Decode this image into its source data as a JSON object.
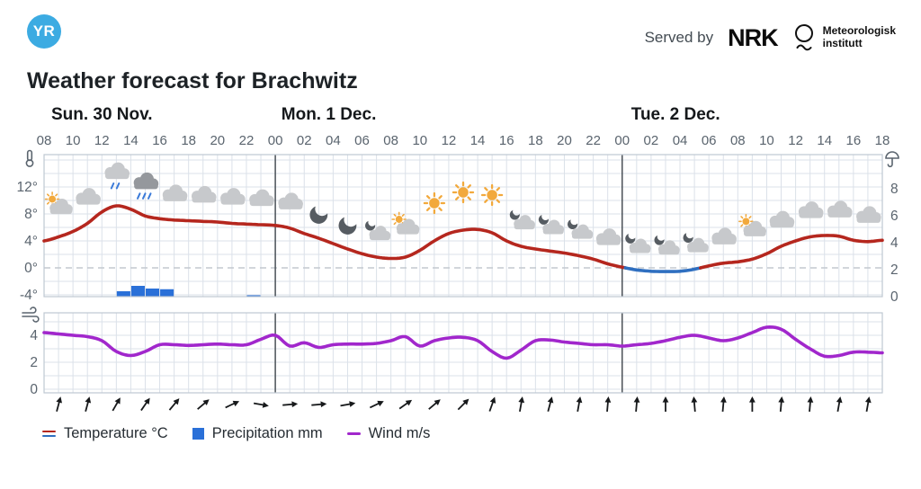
{
  "header": {
    "yr_logo_text": "YR",
    "served_by_label": "Served by",
    "nrk_logo_text": "NRK",
    "met_logo_line1": "Meteorologisk",
    "met_logo_line2": "institutt"
  },
  "page_title": "Weather forecast for Brachwitz",
  "legend": {
    "temperature": "Temperature °C",
    "precipitation": "Precipitation mm",
    "wind": "Wind m/s"
  },
  "colors": {
    "temperature_line": "#b5271e",
    "temperature_below_zero": "#2f6fc0",
    "precipitation_bar": "#2a70d8",
    "wind_line": "#a127cc",
    "grid": "#dbe1e9",
    "frame": "#bfc7d1",
    "divider": "#4b5157",
    "zero_line": "#c3c9cf",
    "axis_text": "#5a646e",
    "day_text": "#15181b",
    "arrow": "#17191b",
    "icon_cloud": "#c7c9cc",
    "icon_cloud_dark": "#95989d",
    "icon_sun": "#f2a93c",
    "icon_moon": "#565c62",
    "icon_rain": "#3a7ad9",
    "yr_blue": "#3cabe2"
  },
  "chart_data": {
    "type": "line",
    "title": "Weather forecast for Brachwitz",
    "x_unit": "hours, every point = 1 hour",
    "x_start": "Sun 08:00",
    "x_end": "Tue 18:00",
    "day_labels": [
      {
        "label": "Sun. 30 Nov.",
        "center_hour": 4
      },
      {
        "label": "Mon. 1 Dec.",
        "center_hour": 19.7
      },
      {
        "label": "Tue. 2 Dec.",
        "center_hour": 43.7
      }
    ],
    "hour_tick_labels": [
      "08",
      "10",
      "12",
      "14",
      "16",
      "18",
      "20",
      "22",
      "00",
      "02",
      "04",
      "06",
      "08",
      "10",
      "12",
      "14",
      "16",
      "18",
      "20",
      "22",
      "00",
      "02",
      "04",
      "06",
      "08",
      "10",
      "12",
      "14",
      "16",
      "18"
    ],
    "temp_axis": {
      "labels": [
        "12°",
        "8°",
        "4°",
        "0°",
        "-4°"
      ],
      "values": [
        12,
        8,
        4,
        0,
        -4
      ]
    },
    "precip_axis": {
      "labels": [
        "8",
        "6",
        "4",
        "2",
        "0"
      ],
      "values": [
        8,
        6,
        4,
        2,
        0
      ]
    },
    "wind_axis": {
      "labels": [
        "4",
        "2",
        "0"
      ],
      "values": [
        4,
        2,
        0
      ]
    },
    "series": [
      {
        "name": "Temperature °C",
        "values": [
          4.0,
          4.6,
          5.4,
          6.6,
          8.3,
          9.2,
          8.7,
          7.7,
          7.3,
          7.1,
          7.0,
          6.9,
          6.8,
          6.6,
          6.5,
          6.4,
          6.3,
          5.9,
          5.1,
          4.4,
          3.6,
          2.8,
          2.1,
          1.6,
          1.4,
          1.6,
          2.6,
          4.0,
          5.1,
          5.6,
          5.7,
          5.2,
          4.0,
          3.2,
          2.8,
          2.5,
          2.2,
          1.8,
          1.3,
          0.6,
          0.1,
          -0.3,
          -0.5,
          -0.55,
          -0.5,
          -0.2,
          0.3,
          0.7,
          0.9,
          1.3,
          2.1,
          3.2,
          4.0,
          4.6,
          4.8,
          4.7,
          4.1,
          3.9,
          4.1
        ]
      },
      {
        "name": "Wind m/s",
        "values": [
          4.2,
          4.1,
          4.0,
          3.9,
          3.6,
          2.8,
          2.5,
          2.8,
          3.3,
          3.3,
          3.25,
          3.3,
          3.35,
          3.3,
          3.3,
          3.7,
          4.0,
          3.2,
          3.45,
          3.1,
          3.3,
          3.35,
          3.35,
          3.4,
          3.6,
          3.9,
          3.2,
          3.6,
          3.8,
          3.85,
          3.6,
          2.8,
          2.3,
          2.9,
          3.6,
          3.65,
          3.5,
          3.4,
          3.3,
          3.3,
          3.2,
          3.3,
          3.4,
          3.6,
          3.85,
          4.0,
          3.8,
          3.6,
          3.8,
          4.2,
          4.6,
          4.45,
          3.7,
          3.0,
          2.45,
          2.5,
          2.75,
          2.75,
          2.7
        ]
      }
    ],
    "precipitation_mm": [
      {
        "hour_offset": 5,
        "mm": 0.4
      },
      {
        "hour_offset": 6,
        "mm": 0.8
      },
      {
        "hour_offset": 7,
        "mm": 0.6
      },
      {
        "hour_offset": 8,
        "mm": 0.55
      },
      {
        "hour_offset": 14,
        "mm": 0.1
      }
    ],
    "weather_symbols": [
      {
        "hour_offset": 1,
        "symbol": "partly-sunny"
      },
      {
        "hour_offset": 3,
        "symbol": "cloudy"
      },
      {
        "hour_offset": 5,
        "symbol": "light-rain"
      },
      {
        "hour_offset": 7,
        "symbol": "rain"
      },
      {
        "hour_offset": 9,
        "symbol": "cloudy"
      },
      {
        "hour_offset": 11,
        "symbol": "cloudy"
      },
      {
        "hour_offset": 13,
        "symbol": "cloudy"
      },
      {
        "hour_offset": 15,
        "symbol": "cloudy"
      },
      {
        "hour_offset": 17,
        "symbol": "cloudy"
      },
      {
        "hour_offset": 19,
        "symbol": "clear-night"
      },
      {
        "hour_offset": 21,
        "symbol": "clear-night"
      },
      {
        "hour_offset": 23,
        "symbol": "partly-cloudy-night"
      },
      {
        "hour_offset": 25,
        "symbol": "partly-sunny"
      },
      {
        "hour_offset": 27,
        "symbol": "sunny"
      },
      {
        "hour_offset": 29,
        "symbol": "sunny"
      },
      {
        "hour_offset": 31,
        "symbol": "sunny"
      },
      {
        "hour_offset": 33,
        "symbol": "partly-cloudy-night"
      },
      {
        "hour_offset": 35,
        "symbol": "partly-cloudy-night"
      },
      {
        "hour_offset": 37,
        "symbol": "partly-cloudy-night"
      },
      {
        "hour_offset": 39,
        "symbol": "cloudy"
      },
      {
        "hour_offset": 41,
        "symbol": "partly-cloudy-night"
      },
      {
        "hour_offset": 43,
        "symbol": "partly-cloudy-night"
      },
      {
        "hour_offset": 45,
        "symbol": "partly-cloudy-night"
      },
      {
        "hour_offset": 47,
        "symbol": "cloudy"
      },
      {
        "hour_offset": 49,
        "symbol": "partly-sunny"
      },
      {
        "hour_offset": 51,
        "symbol": "cloudy"
      },
      {
        "hour_offset": 53,
        "symbol": "cloudy"
      },
      {
        "hour_offset": 55,
        "symbol": "cloudy"
      },
      {
        "hour_offset": 57,
        "symbol": "cloudy"
      }
    ],
    "wind_arrows": [
      {
        "hour_offset": 1,
        "bearing_deg": 15
      },
      {
        "hour_offset": 3,
        "bearing_deg": 15
      },
      {
        "hour_offset": 5,
        "bearing_deg": 30
      },
      {
        "hour_offset": 7,
        "bearing_deg": 35
      },
      {
        "hour_offset": 9,
        "bearing_deg": 40
      },
      {
        "hour_offset": 11,
        "bearing_deg": 50
      },
      {
        "hour_offset": 13,
        "bearing_deg": 65
      },
      {
        "hour_offset": 15,
        "bearing_deg": 100
      },
      {
        "hour_offset": 17,
        "bearing_deg": 85
      },
      {
        "hour_offset": 19,
        "bearing_deg": 85
      },
      {
        "hour_offset": 21,
        "bearing_deg": 80
      },
      {
        "hour_offset": 23,
        "bearing_deg": 65
      },
      {
        "hour_offset": 25,
        "bearing_deg": 55
      },
      {
        "hour_offset": 27,
        "bearing_deg": 50
      },
      {
        "hour_offset": 29,
        "bearing_deg": 45
      },
      {
        "hour_offset": 31,
        "bearing_deg": 20
      },
      {
        "hour_offset": 33,
        "bearing_deg": 10
      },
      {
        "hour_offset": 35,
        "bearing_deg": 15
      },
      {
        "hour_offset": 37,
        "bearing_deg": 10
      },
      {
        "hour_offset": 39,
        "bearing_deg": 5
      },
      {
        "hour_offset": 41,
        "bearing_deg": 5
      },
      {
        "hour_offset": 43,
        "bearing_deg": 0
      },
      {
        "hour_offset": 45,
        "bearing_deg": -5
      },
      {
        "hour_offset": 47,
        "bearing_deg": 5
      },
      {
        "hour_offset": 49,
        "bearing_deg": 0
      },
      {
        "hour_offset": 51,
        "bearing_deg": 5
      },
      {
        "hour_offset": 53,
        "bearing_deg": 5
      },
      {
        "hour_offset": 55,
        "bearing_deg": 10
      },
      {
        "hour_offset": 57,
        "bearing_deg": 10
      }
    ]
  }
}
